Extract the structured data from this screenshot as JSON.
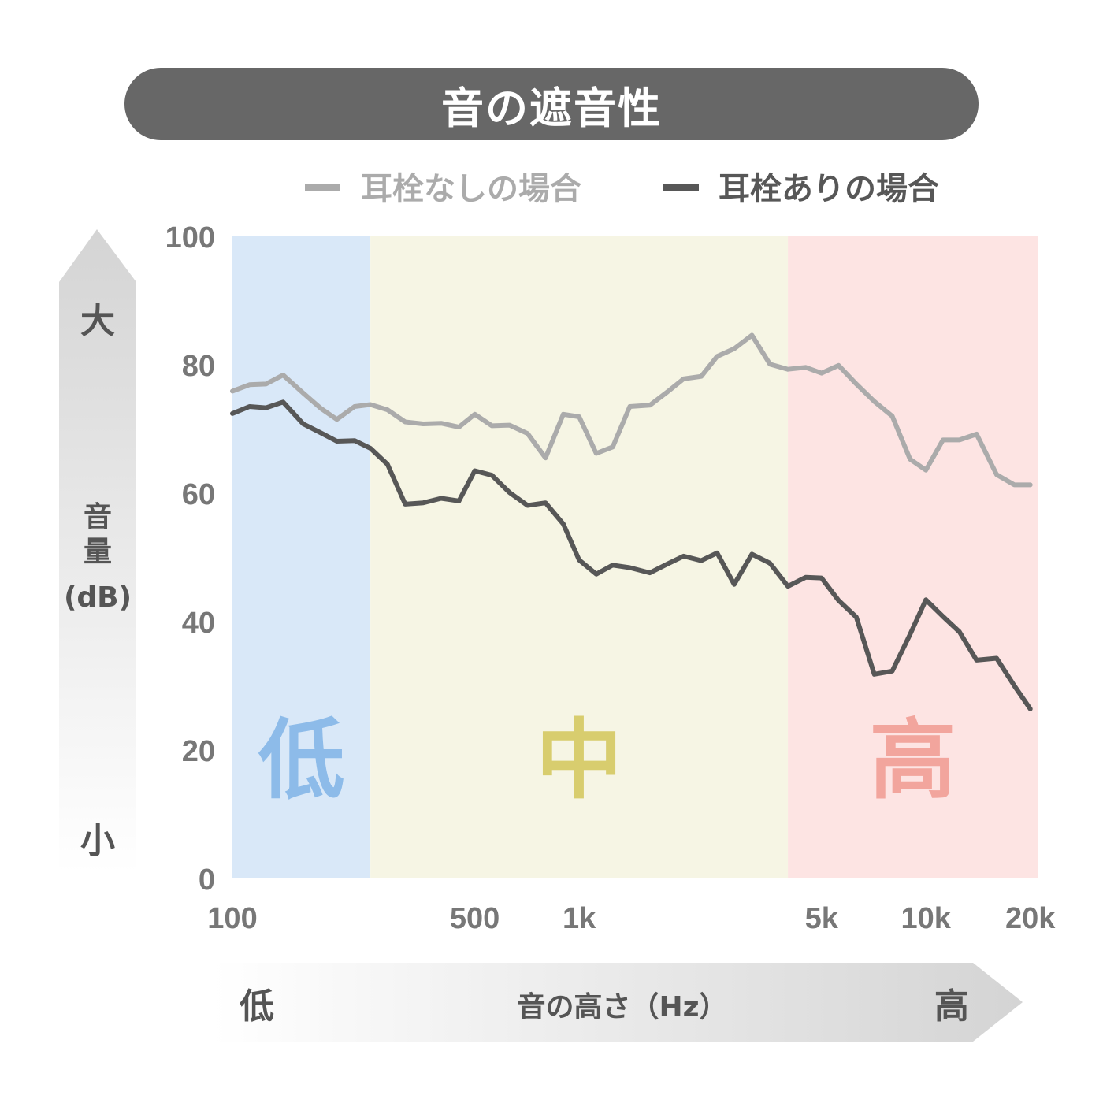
{
  "title": "音の遮音性",
  "colors": {
    "low_band": "#d9e8f8",
    "mid_band": "#f6f5e4",
    "high_band": "#fde4e3",
    "low_label": "#8dbbe9",
    "mid_label": "#d8cd6e",
    "high_label": "#f2a59d",
    "without": "#ababab",
    "with": "#575757"
  },
  "chart_data": {
    "type": "line",
    "x_scale": "log",
    "xlim": [
      100,
      21000
    ],
    "ylim": [
      0,
      100
    ],
    "x_ticks": [
      {
        "value": 100,
        "label": "100"
      },
      {
        "value": 500,
        "label": "500"
      },
      {
        "value": 1000,
        "label": "1k"
      },
      {
        "value": 5000,
        "label": "5k"
      },
      {
        "value": 10000,
        "label": "10k"
      },
      {
        "value": 20000,
        "label": "20k"
      }
    ],
    "y_ticks": [
      {
        "value": 0,
        "label": "0"
      },
      {
        "value": 20,
        "label": "20"
      },
      {
        "value": 40,
        "label": "40"
      },
      {
        "value": 60,
        "label": "60"
      },
      {
        "value": 80,
        "label": "80"
      },
      {
        "value": 100,
        "label": "100"
      }
    ],
    "bands": [
      {
        "key": "low",
        "label": "低",
        "from": 100,
        "to": 250
      },
      {
        "key": "mid",
        "label": "中",
        "from": 250,
        "to": 4000
      },
      {
        "key": "high",
        "label": "高",
        "from": 4000,
        "to": 21000
      }
    ],
    "x": [
      100,
      112,
      125,
      140,
      160,
      180,
      200,
      225,
      250,
      280,
      315,
      355,
      400,
      450,
      500,
      560,
      630,
      710,
      800,
      900,
      1000,
      1120,
      1250,
      1400,
      1600,
      1800,
      2000,
      2250,
      2500,
      2800,
      3150,
      3550,
      4000,
      4500,
      5000,
      5600,
      6300,
      7100,
      8000,
      9000,
      10000,
      11200,
      12500,
      14000,
      16000,
      18000,
      20000
    ],
    "series": [
      {
        "name": "耳栓なしの場合",
        "key": "without",
        "values": [
          75.9,
          76.9,
          77.0,
          78.4,
          75.6,
          73.2,
          71.5,
          73.5,
          73.8,
          73.0,
          71.1,
          70.8,
          70.9,
          70.3,
          72.3,
          70.5,
          70.6,
          69.3,
          65.5,
          72.3,
          71.9,
          66.2,
          67.2,
          73.5,
          73.7,
          75.8,
          77.8,
          78.2,
          81.3,
          82.5,
          84.6,
          80.1,
          79.3,
          79.6,
          78.7,
          79.9,
          77.0,
          74.3,
          72.0,
          65.3,
          63.6,
          68.3,
          68.3,
          69.2,
          62.9,
          61.3,
          61.3
        ]
      },
      {
        "name": "耳栓ありの場合",
        "key": "with",
        "values": [
          72.4,
          73.5,
          73.3,
          74.2,
          70.8,
          69.4,
          68.1,
          68.2,
          67.0,
          64.5,
          58.3,
          58.5,
          59.2,
          58.8,
          63.5,
          62.8,
          60.1,
          58.1,
          58.5,
          55.2,
          49.6,
          47.4,
          48.8,
          48.4,
          47.6,
          49.0,
          50.2,
          49.5,
          50.7,
          45.8,
          50.5,
          49.1,
          45.5,
          46.9,
          46.8,
          43.3,
          40.7,
          31.8,
          32.3,
          38.0,
          43.4,
          40.8,
          38.4,
          34.0,
          34.3,
          30.0,
          26.4
        ]
      }
    ],
    "y_axis": {
      "top_label": "大",
      "bottom_label": "小",
      "title_line1": "音",
      "title_line2": "量",
      "title_line3": "(dB)"
    },
    "x_axis": {
      "left_label": "低",
      "right_label": "高",
      "title": "音の高さ（Hz）"
    }
  }
}
